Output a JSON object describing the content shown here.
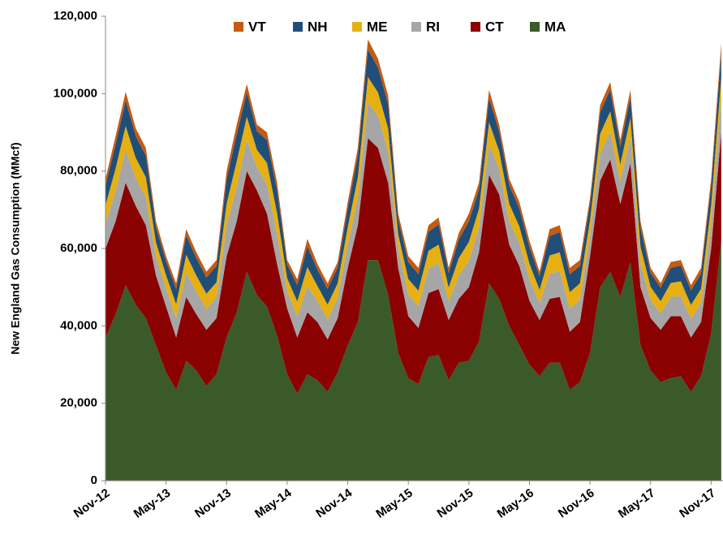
{
  "chart_data": {
    "type": "stacked_area",
    "y_label": "New England Gas Consumption  (MMcf)",
    "categories": [
      "Nov-12",
      null,
      null,
      null,
      null,
      null,
      "May-13",
      null,
      null,
      null,
      null,
      null,
      "Nov-13",
      null,
      null,
      null,
      null,
      null,
      "May-14",
      null,
      null,
      null,
      null,
      null,
      "Nov-14",
      null,
      null,
      null,
      null,
      null,
      "May-15",
      null,
      null,
      null,
      null,
      null,
      "Nov-15",
      null,
      null,
      null,
      null,
      null,
      "May-16",
      null,
      null,
      null,
      null,
      null,
      "Nov-16",
      null,
      null,
      null,
      null,
      null,
      "May-17",
      null,
      null,
      null,
      null,
      null,
      "Nov-17",
      null
    ],
    "ylim": [
      0,
      120000
    ],
    "yticks": [
      0,
      {
        "value": 20000,
        "label": "20,000"
      },
      {
        "value": 40000,
        "label": "40,000"
      },
      {
        "value": 60000,
        "label": "60,000"
      },
      {
        "value": 80000,
        "label": "80,000"
      },
      {
        "value": 100000,
        "label": "100,000"
      },
      {
        "value": 120000,
        "label": "120,000"
      }
    ],
    "legend": "top",
    "series": [
      {
        "name": "VT",
        "color": "#c55a11",
        "values": [
          1800,
          2200,
          2300,
          2000,
          2000,
          1500,
          1300,
          1500,
          1700,
          1500,
          1500,
          1500,
          2200,
          2500,
          2200,
          1700,
          2000,
          2000,
          1200,
          1500,
          2000,
          1500,
          1400,
          1400,
          1700,
          2000,
          2600,
          2300,
          2200,
          1500,
          1600,
          1600,
          1700,
          1800,
          1300,
          1700,
          2000,
          1800,
          2200,
          1800,
          1700,
          1700,
          1600,
          1200,
          1800,
          1800,
          1700,
          1500,
          1500,
          1900,
          2000,
          1700,
          2000,
          1700,
          1300,
          1200,
          1500,
          1400,
          1300,
          1500,
          1800,
          2300
        ]
      },
      {
        "name": "NH",
        "color": "#1f4e79",
        "values": [
          5000,
          6200,
          6600,
          5600,
          5600,
          3900,
          3600,
          3900,
          4900,
          4500,
          4200,
          4200,
          6200,
          7000,
          6300,
          4800,
          5900,
          5900,
          3500,
          4200,
          5300,
          4200,
          4100,
          4100,
          4800,
          5600,
          7100,
          6400,
          6300,
          3900,
          4300,
          4300,
          4900,
          5200,
          3800,
          4800,
          5300,
          5000,
          6200,
          5000,
          4800,
          4600,
          4300,
          3500,
          5000,
          5200,
          4600,
          4500,
          4200,
          5500,
          5600,
          4600,
          5300,
          4800,
          3600,
          3400,
          3900,
          4100,
          3800,
          3900,
          5000,
          6400
        ]
      },
      {
        "name": "ME",
        "color": "#e6b012",
        "values": [
          4700,
          5700,
          6100,
          5200,
          5200,
          3600,
          3400,
          3600,
          4600,
          4200,
          3900,
          3900,
          5700,
          6500,
          5900,
          4400,
          5500,
          5500,
          3300,
          3900,
          4900,
          3900,
          3800,
          3800,
          4400,
          5200,
          6600,
          6000,
          5900,
          3600,
          4000,
          4000,
          4600,
          4800,
          3500,
          4400,
          4900,
          4700,
          5700,
          4700,
          4400,
          4300,
          4000,
          3300,
          4700,
          4800,
          4300,
          4200,
          3900,
          5100,
          5200,
          4300,
          4900,
          4400,
          3400,
          3100,
          3600,
          3800,
          3500,
          3600,
          4700,
          6000
        ]
      },
      {
        "name": "RI",
        "color": "#a6a6a6",
        "values": [
          6500,
          7900,
          8500,
          7200,
          7200,
          5000,
          4700,
          5000,
          6300,
          5800,
          5400,
          5400,
          7900,
          9000,
          8100,
          6100,
          7600,
          7600,
          4500,
          5400,
          6800,
          5400,
          5200,
          5200,
          6100,
          7200,
          9200,
          8300,
          8100,
          5000,
          5600,
          5600,
          6300,
          6700,
          4900,
          6100,
          6800,
          6500,
          7900,
          6500,
          6100,
          5900,
          5600,
          4500,
          6500,
          6700,
          5900,
          5800,
          5400,
          7000,
          7200,
          5900,
          6800,
          6100,
          4700,
          4300,
          5000,
          5200,
          4900,
          5000,
          6500,
          8300
        ]
      },
      {
        "name": "CT",
        "color": "#8b0000",
        "values": [
          23000,
          24000,
          26500,
          25500,
          24000,
          18000,
          17000,
          13500,
          16500,
          14500,
          14500,
          14500,
          21000,
          23500,
          26000,
          27000,
          24000,
          18500,
          17000,
          14500,
          16000,
          15000,
          13500,
          14000,
          20000,
          25000,
          31500,
          29000,
          29000,
          22000,
          16000,
          14500,
          16500,
          17000,
          15500,
          16500,
          19000,
          23000,
          28000,
          27000,
          21000,
          20500,
          16500,
          14500,
          16500,
          17000,
          15000,
          15500,
          25000,
          27500,
          29000,
          24000,
          25500,
          15000,
          13500,
          13500,
          16000,
          15500,
          14000,
          14000,
          22000,
          28000
        ]
      },
      {
        "name": "MA",
        "color": "#3b5a2a",
        "values": [
          37000,
          43000,
          50500,
          45500,
          42000,
          35000,
          28000,
          23500,
          31000,
          28500,
          24500,
          27500,
          37000,
          43500,
          54000,
          48000,
          45000,
          37500,
          27500,
          22500,
          27500,
          26000,
          23000,
          28000,
          35000,
          41000,
          57000,
          57000,
          48000,
          33000,
          26500,
          25000,
          32000,
          32500,
          26000,
          30500,
          31000,
          36000,
          51000,
          47000,
          40000,
          35000,
          30000,
          27000,
          30500,
          30500,
          23500,
          25500,
          33000,
          50000,
          54000,
          47500,
          56500,
          35000,
          28500,
          25500,
          26500,
          27000,
          23000,
          27000,
          38000,
          62000
        ]
      }
    ]
  }
}
